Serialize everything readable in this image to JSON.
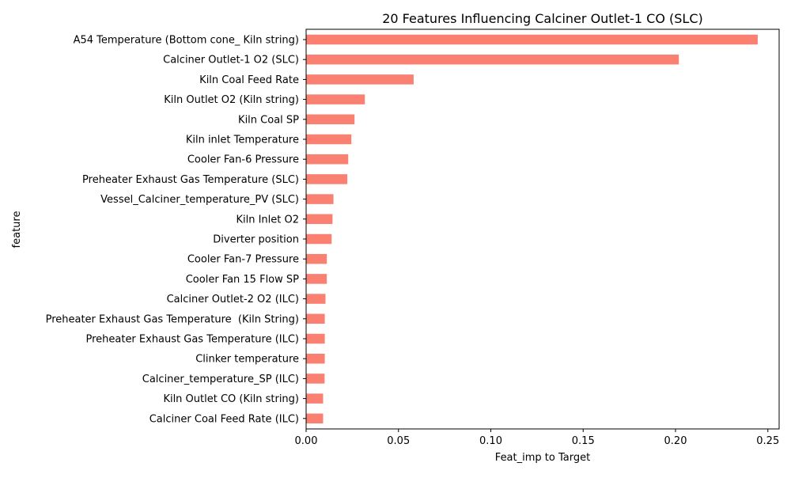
{
  "chart_data": {
    "type": "bar",
    "orientation": "horizontal",
    "title": "20 Features Influencing Calciner Outlet-1 CO (SLC)",
    "xlabel": "Feat_imp to Target",
    "ylabel": "feature",
    "xlim": [
      0.0,
      0.2561
    ],
    "xticks": [
      "0.00",
      "0.05",
      "0.10",
      "0.15",
      "0.20",
      "0.25"
    ],
    "grid": false,
    "bar_color": "#fa8072",
    "categories": [
      "A54 Temperature (Bottom cone_ Kiln string)",
      "Calciner Outlet-1 O2 (SLC)",
      "Kiln Coal Feed Rate",
      "Kiln Outlet O2 (Kiln string)",
      "Kiln Coal SP",
      "Kiln inlet Temperature",
      "Cooler Fan-6 Pressure",
      "Preheater Exhaust Gas Temperature (SLC)",
      "Vessel_Calciner_temperature_PV (SLC)",
      "Kiln Inlet O2",
      "Diverter position",
      "Cooler Fan-7 Pressure",
      "Cooler Fan 15 Flow SP",
      "Calciner Outlet-2 O2 (ILC)",
      "Preheater Exhaust Gas Temperature  (Kiln String)",
      "Preheater Exhaust Gas Temperature (ILC)",
      "Clinker temperature",
      "Calciner_temperature_SP (ILC)",
      "Kiln Outlet CO (Kiln string)",
      "Calciner Coal Feed Rate (ILC)"
    ],
    "values": [
      0.2445,
      0.2018,
      0.0582,
      0.0318,
      0.0262,
      0.0245,
      0.0228,
      0.0223,
      0.0148,
      0.0143,
      0.0138,
      0.0112,
      0.0112,
      0.0105,
      0.0101,
      0.0101,
      0.0101,
      0.01,
      0.0092,
      0.0092
    ]
  }
}
